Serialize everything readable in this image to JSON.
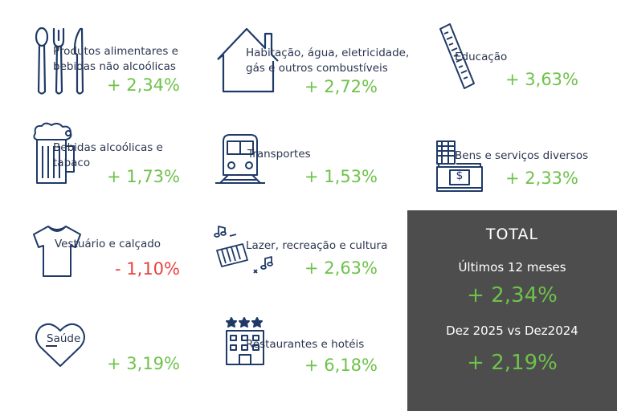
{
  "colors": {
    "icon_stroke": "#1f3a68",
    "positive": "#6ec24a",
    "negative": "#e8423e",
    "total_bg": "#4d4d4d"
  },
  "categories": [
    {
      "icon": "cutlery-icon",
      "label_lines": [
        "Produtos alimentares e",
        "bebidas não alcoólicas"
      ],
      "value": "+ 2,34%"
    },
    {
      "icon": "house-icon",
      "label_lines": [
        "Habitação, água, eletricidade,",
        "gás e outros combustíveis"
      ],
      "value": "+ 2,72%"
    },
    {
      "icon": "ruler-icon",
      "label_lines": [
        "Educação"
      ],
      "value": "+ 3,63%"
    },
    {
      "icon": "beer-mug-icon",
      "label_lines": [
        "Bebidas alcoólicas e",
        "tabaco"
      ],
      "value": "+ 1,73%"
    },
    {
      "icon": "train-icon",
      "label_lines": [
        "Transportes"
      ],
      "value": "+ 1,53%"
    },
    {
      "icon": "cash-register-icon",
      "label_lines": [
        "Bens e serviços diversos"
      ],
      "value": "+ 2,33%"
    },
    {
      "icon": "tshirt-icon",
      "label_lines": [
        "Vestuário e calçado"
      ],
      "value": "- 1,10%"
    },
    {
      "icon": "keyboard-music-icon",
      "label_lines": [
        "Lazer, recreação e cultura"
      ],
      "value": "+ 2,63%"
    },
    {
      "icon": "heart-icon",
      "label_lines": [
        "Saúde"
      ],
      "value": "+ 3,19%"
    },
    {
      "icon": "hotel-icon",
      "label_lines": [
        "Restaurantes e hotéis"
      ],
      "value": "+ 6,18%"
    }
  ],
  "total": {
    "title": "TOTAL",
    "period1_label": "Últimos 12 meses",
    "period1_value": "+ 2,34%",
    "period2_label": "Dez 2025 vs Dez2024",
    "period2_value": "+ 2,19%"
  }
}
